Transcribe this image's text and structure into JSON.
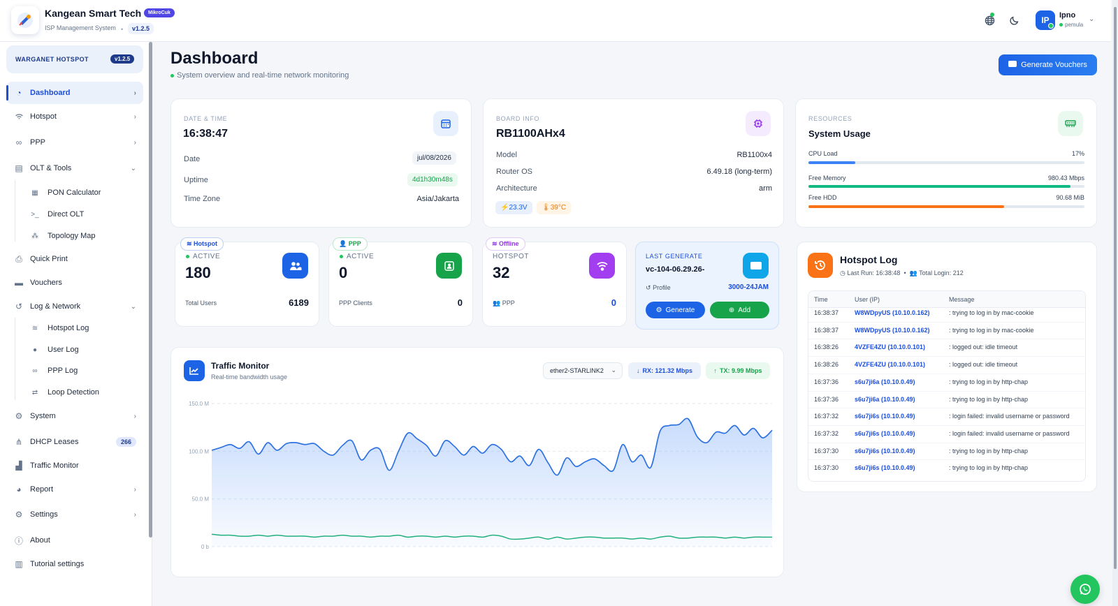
{
  "header": {
    "brand_name": "Kangean Smart Tech",
    "brand_badge": "MikroCuk",
    "brand_sub": "ISP Management System",
    "version": "v1.2.5",
    "avatar_initials": "IP",
    "user_name": "Ipno",
    "user_role": "pemula"
  },
  "sidebar": {
    "hotspot_title": "WARGANET HOTSPOT",
    "hotspot_version": "v1.2.5",
    "items": {
      "dashboard": "Dashboard",
      "hotspot": "Hotspot",
      "ppp": "PPP",
      "olt_tools": "OLT & Tools",
      "pon_calculator": "PON Calculator",
      "direct_olt": "Direct OLT",
      "topology_map": "Topology Map",
      "quick_print": "Quick Print",
      "vouchers": "Vouchers",
      "log_network": "Log & Network",
      "hotspot_log": "Hotspot Log",
      "user_log": "User Log",
      "ppp_log": "PPP Log",
      "loop_detection": "Loop Detection",
      "system": "System",
      "dhcp_leases": "DHCP Leases",
      "dhcp_count": "266",
      "traffic_monitor": "Traffic Monitor",
      "report": "Report",
      "settings": "Settings",
      "about": "About",
      "tutorial_settings": "Tutorial settings"
    }
  },
  "page": {
    "title": "Dashboard",
    "subtitle": "System overview and real-time network monitoring",
    "generate_vouchers": "Generate Vouchers"
  },
  "datetime": {
    "label": "DATE & TIME",
    "time": "16:38:47",
    "date_label": "Date",
    "date_value": "jul/08/2026",
    "uptime_label": "Uptime",
    "uptime_value": "4d1h30m48s",
    "tz_label": "Time Zone",
    "tz_value": "Asia/Jakarta"
  },
  "board": {
    "label": "BOARD INFO",
    "name": "RB1100AHx4",
    "model_label": "Model",
    "model_value": "RB1100x4",
    "os_label": "Router OS",
    "os_value": "6.49.18 (long-term)",
    "arch_label": "Architecture",
    "arch_value": "arm",
    "voltage": "23.3V",
    "temperature": "39°C"
  },
  "resources": {
    "label": "RESOURCES",
    "title": "System Usage",
    "cpu_label": "CPU Load",
    "cpu_value": "17%",
    "cpu_fraction": 0.17,
    "mem_label": "Free Memory",
    "mem_value": "980.43 Mbps",
    "mem_fraction": 0.95,
    "hdd_label": "Free HDD",
    "hdd_value": "90.68 MiB",
    "hdd_fraction": 0.71
  },
  "stats": {
    "hotspot": {
      "tag": "Hotspot",
      "sub": "ACTIVE",
      "value": "180",
      "foot_label": "Total Users",
      "foot_value": "6189"
    },
    "ppp": {
      "tag": "PPP",
      "sub": "ACTIVE",
      "value": "0",
      "foot_label": "PPP Clients",
      "foot_value": "0"
    },
    "offline": {
      "tag": "Offline",
      "sub": "HOTSPOT",
      "value": "32",
      "foot_label": "PPP",
      "foot_value": "0"
    }
  },
  "last_generate": {
    "label": "LAST GENERATE",
    "code": "vc-104-06.29.26-",
    "profile_label": "Profile",
    "profile_value": "3000-24JAM",
    "generate_button": "Generate",
    "add_button": "Add"
  },
  "traffic": {
    "title": "Traffic Monitor",
    "subtitle": "Real-time bandwidth usage",
    "interface": "ether2-STARLINK2",
    "rx": "RX: 121.32 Mbps",
    "tx": "TX: 9.99 Mbps"
  },
  "chart_data": {
    "type": "area",
    "title": "",
    "xlabel": "",
    "ylabel": "",
    "ylim": [
      0,
      150
    ],
    "y_ticks": [
      "150.0 M",
      "100.0 M",
      "50.0 M",
      "0 b"
    ],
    "grid": true,
    "series": [
      {
        "name": "RX",
        "color": "#2f73e0",
        "values": [
          101,
          104,
          107,
          103,
          110,
          97,
          109,
          101,
          108,
          109,
          107,
          108,
          100,
          96,
          106,
          111,
          91,
          101,
          102,
          80,
          100,
          119,
          113,
          106,
          95,
          111,
          105,
          96,
          105,
          98,
          107,
          102,
          89,
          95,
          85,
          102,
          88,
          75,
          93,
          84,
          89,
          92,
          85,
          80,
          107,
          89,
          96,
          83,
          121,
          127,
          128,
          134,
          115,
          109,
          120,
          119,
          127,
          117,
          124,
          114,
          122
        ]
      },
      {
        "name": "TX",
        "color": "#22b07d",
        "values": [
          13,
          12,
          12,
          11,
          11,
          12,
          11,
          12,
          11,
          11,
          11,
          10,
          11,
          11,
          12,
          11,
          11,
          10,
          11,
          11,
          12,
          10,
          11,
          11,
          10,
          11,
          10,
          11,
          11,
          10,
          12,
          11,
          8,
          8,
          9,
          10,
          8,
          10,
          8,
          9,
          10,
          10,
          9,
          9,
          9,
          8,
          9,
          8,
          10,
          11,
          9,
          9,
          10,
          10,
          10,
          9,
          10,
          9,
          10,
          10,
          10
        ]
      }
    ]
  },
  "hotspot_log": {
    "title": "Hotspot Log",
    "last_run": "Last Run: 16:38:48",
    "total_login": "Total Login: 212",
    "columns": [
      "Time",
      "User (IP)",
      "Message"
    ],
    "rows": [
      [
        "16:38:37",
        "W8WDpyUS (10.10.0.162)",
        ": trying to log in by mac-cookie"
      ],
      [
        "16:38:37",
        "W8WDpyUS (10.10.0.162)",
        ": trying to log in by mac-cookie"
      ],
      [
        "16:38:26",
        "4VZFE4ZU (10.10.0.101)",
        ": logged out: idle timeout"
      ],
      [
        "16:38:26",
        "4VZFE4ZU (10.10.0.101)",
        ": logged out: idle timeout"
      ],
      [
        "16:37:36",
        "s6u7ji6a (10.10.0.49)",
        ": trying to log in by http-chap"
      ],
      [
        "16:37:36",
        "s6u7ji6a (10.10.0.49)",
        ": trying to log in by http-chap"
      ],
      [
        "16:37:32",
        "s6u7ji6s (10.10.0.49)",
        ": login failed: invalid username or password"
      ],
      [
        "16:37:32",
        "s6u7ji6s (10.10.0.49)",
        ": login failed: invalid username or password"
      ],
      [
        "16:37:30",
        "s6u7ji6s (10.10.0.49)",
        ": trying to log in by http-chap"
      ],
      [
        "16:37:30",
        "s6u7ji6s (10.10.0.49)",
        ": trying to log in by http-chap"
      ]
    ]
  },
  "colors": {
    "primary": "#1d63e6",
    "green": "#16a34a",
    "purple": "#9333ea",
    "orange": "#f97316"
  }
}
